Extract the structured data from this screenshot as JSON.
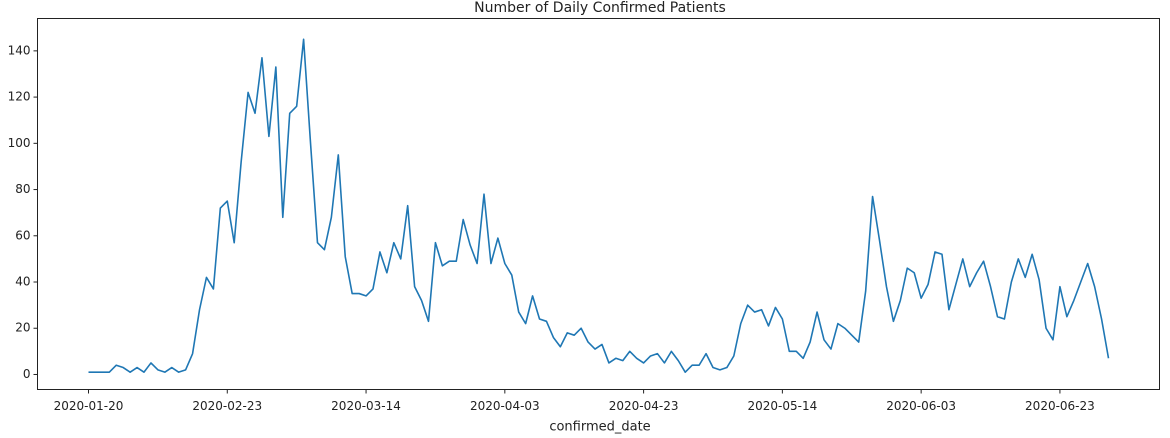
{
  "chart_data": {
    "type": "line",
    "title": "Number of Daily Confirmed Patients",
    "x_label": "confirmed_date",
    "categories": [
      "2020-01-20",
      null,
      null,
      null,
      null,
      null,
      null,
      null,
      null,
      null,
      null,
      null,
      null,
      null,
      null,
      null,
      null,
      null,
      null,
      null,
      "2020-02-23",
      null,
      null,
      null,
      null,
      null,
      null,
      null,
      null,
      null,
      null,
      null,
      null,
      null,
      null,
      null,
      null,
      null,
      null,
      null,
      "2020-03-14",
      null,
      null,
      null,
      null,
      null,
      null,
      null,
      null,
      null,
      null,
      null,
      null,
      null,
      null,
      null,
      null,
      null,
      null,
      null,
      "2020-04-03",
      null,
      null,
      null,
      null,
      null,
      null,
      null,
      null,
      null,
      null,
      null,
      null,
      null,
      null,
      null,
      null,
      null,
      null,
      null,
      "2020-04-23",
      null,
      null,
      null,
      null,
      null,
      null,
      null,
      null,
      null,
      null,
      null,
      null,
      null,
      null,
      null,
      null,
      null,
      null,
      null,
      "2020-05-14",
      null,
      null,
      null,
      null,
      null,
      null,
      null,
      null,
      null,
      null,
      null,
      null,
      null,
      null,
      null,
      null,
      null,
      null,
      null,
      "2020-06-03",
      null,
      null,
      null,
      null,
      null,
      null,
      null,
      null,
      null,
      null,
      null,
      null,
      null,
      null,
      null,
      null,
      null,
      null,
      null,
      "2020-06-23",
      null,
      null,
      null,
      null,
      null,
      null,
      null
    ],
    "values": [
      1,
      1,
      1,
      1,
      4,
      3,
      1,
      3,
      1,
      5,
      2,
      1,
      3,
      1,
      2,
      9,
      28,
      42,
      37,
      72,
      75,
      57,
      92,
      122,
      113,
      137,
      103,
      133,
      68,
      113,
      116,
      145,
      100,
      57,
      54,
      68,
      95,
      51,
      35,
      35,
      34,
      37,
      53,
      44,
      57,
      50,
      73,
      38,
      32,
      23,
      57,
      47,
      49,
      49,
      67,
      56,
      48,
      78,
      48,
      59,
      48,
      43,
      27,
      22,
      34,
      24,
      23,
      16,
      12,
      18,
      17,
      20,
      14,
      11,
      13,
      5,
      7,
      6,
      10,
      7,
      5,
      8,
      9,
      5,
      10,
      6,
      1,
      4,
      4,
      9,
      3,
      2,
      3,
      8,
      22,
      30,
      27,
      28,
      21,
      29,
      24,
      10,
      10,
      7,
      14,
      27,
      15,
      11,
      22,
      20,
      17,
      14,
      36,
      77,
      58,
      38,
      23,
      32,
      46,
      44,
      33,
      39,
      53,
      52,
      28,
      39,
      50,
      38,
      44,
      49,
      38,
      25,
      24,
      40,
      50,
      42,
      52,
      41,
      20,
      15,
      38,
      25,
      32,
      40,
      48,
      38,
      24,
      7
    ],
    "color": "#1f77b4",
    "ylim": [
      -6.5,
      154
    ],
    "yticks": [
      0,
      20,
      40,
      60,
      80,
      100,
      120,
      140
    ],
    "grid": false
  }
}
